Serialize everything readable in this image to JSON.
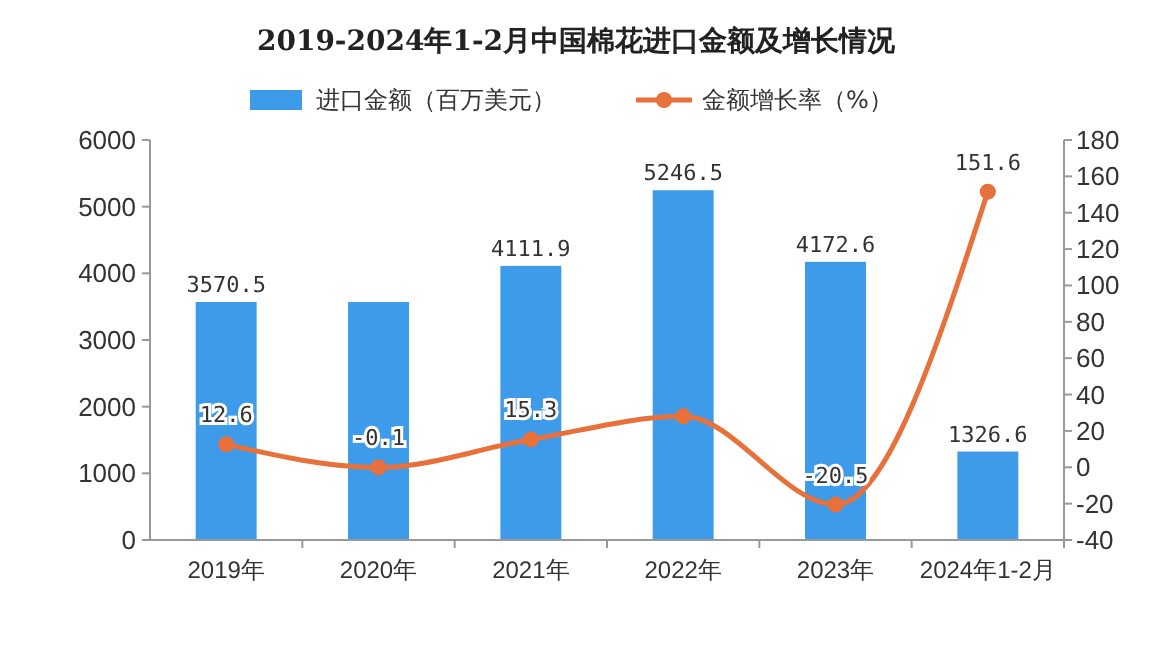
{
  "chart_data": {
    "type": "bar",
    "title": "2019-2024年1-2月中国棉花进口金额及增长情况",
    "categories": [
      "2019年",
      "2020年",
      "2021年",
      "2022年",
      "2023年",
      "2024年1-2月"
    ],
    "series": [
      {
        "name": "进口金额（百万美元）",
        "color": "#3d9be9",
        "values": [
          3570.5,
          3570,
          4111.9,
          5246.5,
          4172.6,
          1326.6
        ],
        "value_labels": [
          "3570.5",
          null,
          "4111.9",
          "5246.5",
          "4172.6",
          "1326.6"
        ]
      },
      {
        "name": "金额增长率（%）",
        "type": "line",
        "axis": "y2",
        "color": "#e8703a",
        "marker": "circle",
        "values": [
          12.6,
          -0.1,
          15.3,
          28,
          -20.5,
          151.6
        ],
        "value_labels": [
          "12.6",
          "-0.1",
          "15.3",
          null,
          "-20.5",
          "151.6"
        ]
      }
    ],
    "ylim": [
      0,
      6000
    ],
    "yticks": [
      0,
      1000,
      2000,
      3000,
      4000,
      5000,
      6000
    ],
    "y2lim": [
      -40,
      180
    ],
    "y2ticks": [
      -40,
      -20,
      0,
      20,
      40,
      60,
      80,
      100,
      120,
      140,
      160,
      180
    ],
    "legend": "top",
    "grid": false
  }
}
